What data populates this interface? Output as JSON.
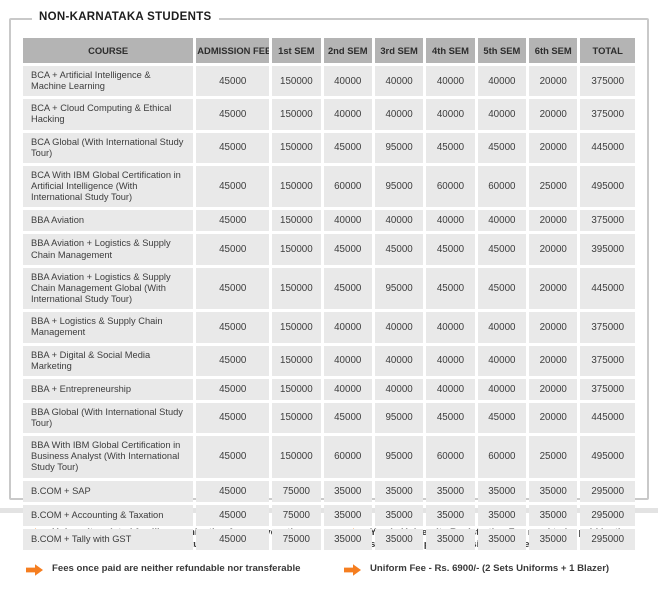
{
  "section": {
    "title": "NON-KARNATAKA STUDENTS"
  },
  "table": {
    "headers": [
      "COURSE",
      "ADMISSION FEE",
      "1st SEM",
      "2nd SEM",
      "3rd SEM",
      "4th SEM",
      "5th SEM",
      "6th SEM",
      "TOTAL"
    ],
    "rows": [
      {
        "course": "BCA + Artificial Intelligence & Machine Learning",
        "fees": [
          "45000",
          "150000",
          "40000",
          "40000",
          "40000",
          "40000",
          "20000",
          "375000"
        ]
      },
      {
        "course": "BCA + Cloud Computing & Ethical Hacking",
        "fees": [
          "45000",
          "150000",
          "40000",
          "40000",
          "40000",
          "40000",
          "20000",
          "375000"
        ]
      },
      {
        "course": "BCA Global (With International Study Tour)",
        "fees": [
          "45000",
          "150000",
          "45000",
          "95000",
          "45000",
          "45000",
          "20000",
          "445000"
        ]
      },
      {
        "course": "BCA With IBM Global Certification in Artificial Intelligence (With International Study Tour)",
        "fees": [
          "45000",
          "150000",
          "60000",
          "95000",
          "60000",
          "60000",
          "25000",
          "495000"
        ]
      },
      {
        "course": "BBA Aviation",
        "fees": [
          "45000",
          "150000",
          "40000",
          "40000",
          "40000",
          "40000",
          "20000",
          "375000"
        ]
      },
      {
        "course": "BBA Aviation + Logistics & Supply Chain Management",
        "fees": [
          "45000",
          "150000",
          "45000",
          "45000",
          "45000",
          "45000",
          "20000",
          "395000"
        ]
      },
      {
        "course": "BBA Aviation + Logistics & Supply Chain Management Global (With International Study Tour)",
        "fees": [
          "45000",
          "150000",
          "45000",
          "95000",
          "45000",
          "45000",
          "20000",
          "445000"
        ]
      },
      {
        "course": "BBA + Logistics & Supply Chain Management",
        "fees": [
          "45000",
          "150000",
          "40000",
          "40000",
          "40000",
          "40000",
          "20000",
          "375000"
        ]
      },
      {
        "course": "BBA + Digital & Social Media Marketing",
        "fees": [
          "45000",
          "150000",
          "40000",
          "40000",
          "40000",
          "40000",
          "20000",
          "375000"
        ]
      },
      {
        "course": "BBA + Entrepreneurship",
        "fees": [
          "45000",
          "150000",
          "40000",
          "40000",
          "40000",
          "40000",
          "20000",
          "375000"
        ]
      },
      {
        "course": "BBA Global (With International Study Tour)",
        "fees": [
          "45000",
          "150000",
          "45000",
          "95000",
          "45000",
          "45000",
          "20000",
          "445000"
        ]
      },
      {
        "course": "BBA With IBM Global Certification in Business Analyst (With International Study Tour)",
        "fees": [
          "45000",
          "150000",
          "60000",
          "95000",
          "60000",
          "60000",
          "25000",
          "495000"
        ]
      },
      {
        "course": "B.COM + SAP",
        "fees": [
          "45000",
          "75000",
          "35000",
          "35000",
          "35000",
          "35000",
          "35000",
          "295000"
        ]
      },
      {
        "course": "B.COM + Accounting & Taxation",
        "fees": [
          "45000",
          "75000",
          "35000",
          "35000",
          "35000",
          "35000",
          "35000",
          "295000"
        ]
      },
      {
        "course": "B.COM + Tally with GST",
        "fees": [
          "45000",
          "75000",
          "35000",
          "35000",
          "35000",
          "35000",
          "35000",
          "295000"
        ]
      }
    ]
  },
  "notes": {
    "left": [
      "University related fee like examination fee, convocation fee etc are not included in the tuition fee",
      "Fees once paid are neither refundable nor transferable"
    ],
    "right": [
      "Yearly University Registration Fee need to be paid by the student (as per Universiy guidelines)",
      "Uniform Fee - Rs. 6900/- (2 Sets Uniforms + 1 Blazer)"
    ]
  },
  "colors": {
    "header_bg": "#b4b4b4",
    "cell_bg": "#e9e9e9",
    "panel_border": "#c9c9c9",
    "note_arrow": "#f57e20",
    "text_dark": "#3a3a3a"
  },
  "icons": {
    "note_bullet": "arrow-right-icon"
  }
}
